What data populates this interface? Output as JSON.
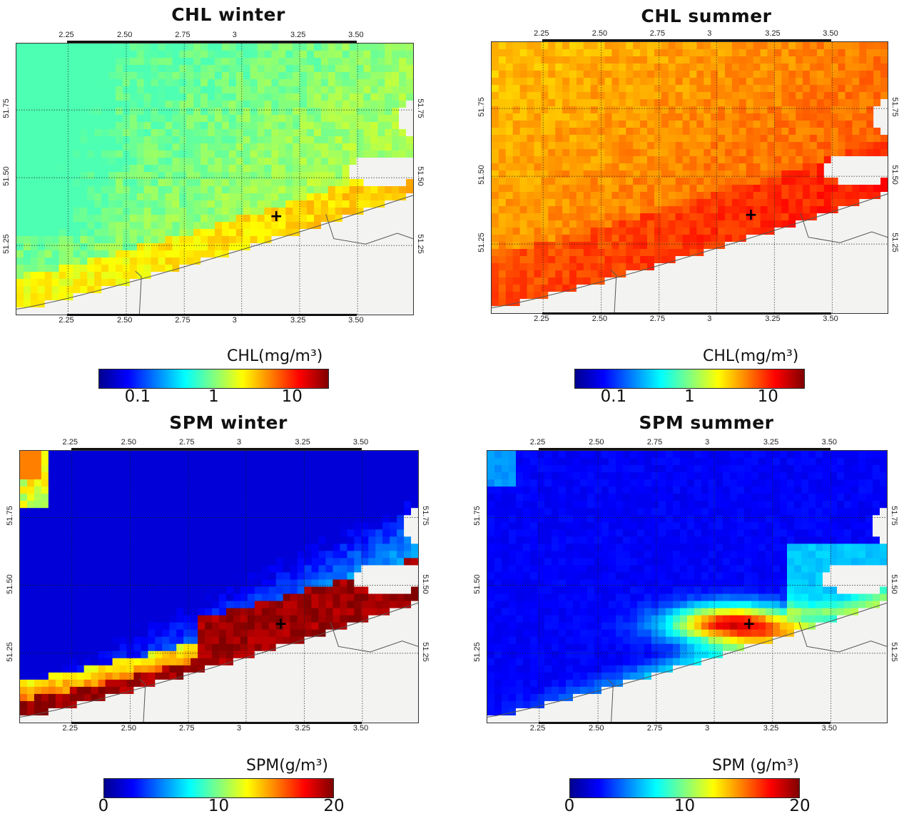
{
  "panels": [
    {
      "id": "chl-winter",
      "title": "CHL winter",
      "scheme": "chl_winter",
      "colorbar": {
        "label": "CHL(mg/m³)",
        "ticks": [
          "0.1",
          "1",
          "10"
        ],
        "scale": "log"
      }
    },
    {
      "id": "chl-summer",
      "title": "CHL summer",
      "scheme": "chl_summer",
      "colorbar": {
        "label": "CHL(mg/m³)",
        "ticks": [
          "0.1",
          "1",
          "10"
        ],
        "scale": "log"
      }
    },
    {
      "id": "spm-winter",
      "title": "SPM winter",
      "scheme": "spm_winter",
      "colorbar": {
        "label": "SPM(g/m³)",
        "ticks": [
          "0",
          "10",
          "20"
        ],
        "scale": "linear"
      }
    },
    {
      "id": "spm-summer",
      "title": "SPM summer",
      "scheme": "spm_summer",
      "colorbar": {
        "label": "SPM (g/m³)",
        "ticks": [
          "0",
          "10",
          "20"
        ],
        "scale": "linear"
      }
    }
  ],
  "axes": {
    "lon_ticks": [
      "2.25",
      "2.50",
      "2.75",
      "3",
      "3.25",
      "3.50"
    ],
    "lat_ticks": [
      "51.75",
      "51.50",
      "51.25"
    ]
  },
  "station_marker": "+",
  "colors": {
    "land": "#f3f3f1",
    "coastline": "#555555",
    "grid": "#222222",
    "jet_stops": [
      "#00008f",
      "#0000ff",
      "#0080ff",
      "#00ffff",
      "#80ff80",
      "#ffff00",
      "#ff8000",
      "#ff0000",
      "#800000"
    ]
  }
}
